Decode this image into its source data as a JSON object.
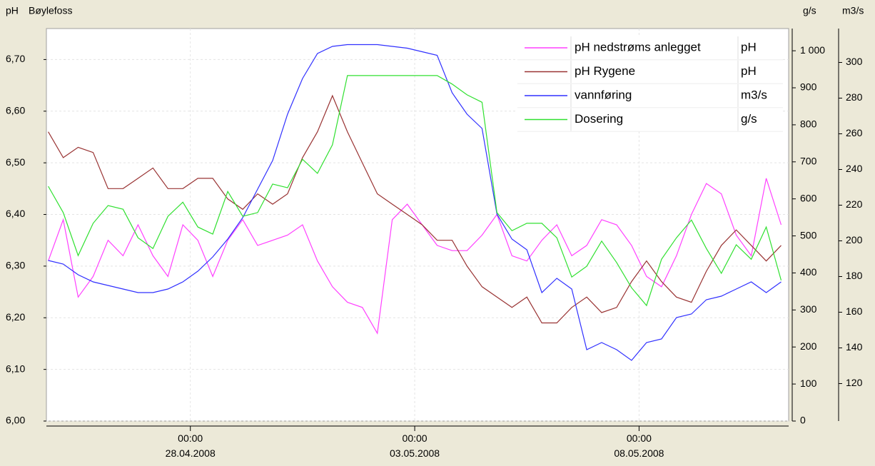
{
  "chart_data": {
    "type": "line",
    "title": "Bøylefoss",
    "ylabel": "pH",
    "y2label": "g/s",
    "y3label": "m3/s",
    "xlim": [
      "2008-04-24T19:00",
      "2008-05-11T08:00"
    ],
    "xticks": [
      {
        "value": "2008-04-28T00:00",
        "label": "00:00\n28.04.2008"
      },
      {
        "value": "2008-05-03T00:00",
        "label": "00:00\n03.05.2008"
      },
      {
        "value": "2008-05-08T00:00",
        "label": "00:00\n08.05.2008"
      }
    ],
    "ylim": [
      6.0,
      6.76
    ],
    "yticks": [
      {
        "value": 6.0,
        "label": "6,00"
      },
      {
        "value": 6.1,
        "label": "6,10"
      },
      {
        "value": 6.2,
        "label": "6,20"
      },
      {
        "value": 6.3,
        "label": "6,30"
      },
      {
        "value": 6.4,
        "label": "6,40"
      },
      {
        "value": 6.5,
        "label": "6,50"
      },
      {
        "value": 6.6,
        "label": "6,60"
      },
      {
        "value": 6.7,
        "label": "6,70"
      }
    ],
    "y2lim": [
      0,
      1060
    ],
    "y2ticks": [
      0,
      100,
      200,
      300,
      400,
      500,
      600,
      700,
      800,
      900,
      {
        "value": 1000,
        "label": "1 000"
      }
    ],
    "y3lim": [
      99,
      319
    ],
    "y3ticks": [
      120,
      140,
      160,
      180,
      200,
      220,
      240,
      260,
      280,
      300
    ],
    "grid": true,
    "legend": "upper right",
    "x": [
      "2008-04-24T20:00",
      "2008-04-25T04:00",
      "2008-04-25T12:00",
      "2008-04-25T20:00",
      "2008-04-26T04:00",
      "2008-04-26T12:00",
      "2008-04-26T20:00",
      "2008-04-27T04:00",
      "2008-04-27T12:00",
      "2008-04-27T20:00",
      "2008-04-28T04:00",
      "2008-04-28T12:00",
      "2008-04-28T20:00",
      "2008-04-29T04:00",
      "2008-04-29T12:00",
      "2008-04-29T20:00",
      "2008-04-30T04:00",
      "2008-04-30T12:00",
      "2008-04-30T20:00",
      "2008-05-01T04:00",
      "2008-05-01T12:00",
      "2008-05-01T20:00",
      "2008-05-02T04:00",
      "2008-05-02T12:00",
      "2008-05-02T20:00",
      "2008-05-03T04:00",
      "2008-05-03T12:00",
      "2008-05-03T20:00",
      "2008-05-04T04:00",
      "2008-05-04T12:00",
      "2008-05-04T20:00",
      "2008-05-05T04:00",
      "2008-05-05T12:00",
      "2008-05-05T20:00",
      "2008-05-06T04:00",
      "2008-05-06T12:00",
      "2008-05-06T20:00",
      "2008-05-07T04:00",
      "2008-05-07T12:00",
      "2008-05-07T20:00",
      "2008-05-08T04:00",
      "2008-05-08T12:00",
      "2008-05-08T20:00",
      "2008-05-09T04:00",
      "2008-05-09T12:00",
      "2008-05-09T20:00",
      "2008-05-10T04:00",
      "2008-05-10T12:00",
      "2008-05-10T20:00",
      "2008-05-11T04:00"
    ],
    "series": [
      {
        "name": "pH nedstrøms anlegget",
        "unit": "pH",
        "color": "#ff40ff",
        "axis": "y",
        "values": [
          6.31,
          6.39,
          6.24,
          6.28,
          6.35,
          6.32,
          6.38,
          6.32,
          6.28,
          6.38,
          6.35,
          6.28,
          6.35,
          6.39,
          6.34,
          6.35,
          6.36,
          6.38,
          6.31,
          6.26,
          6.23,
          6.22,
          6.17,
          6.39,
          6.42,
          6.38,
          6.34,
          6.33,
          6.33,
          6.36,
          6.4,
          6.32,
          6.31,
          6.35,
          6.38,
          6.32,
          6.34,
          6.39,
          6.38,
          6.34,
          6.28,
          6.26,
          6.32,
          6.4,
          6.46,
          6.44,
          6.36,
          6.32,
          6.47,
          6.38
        ]
      },
      {
        "name": "pH Rygene",
        "unit": "pH",
        "color": "#993333",
        "axis": "y",
        "values": [
          6.56,
          6.51,
          6.53,
          6.52,
          6.45,
          6.45,
          6.47,
          6.49,
          6.45,
          6.45,
          6.47,
          6.47,
          6.43,
          6.41,
          6.44,
          6.42,
          6.44,
          6.51,
          6.56,
          6.63,
          6.56,
          6.5,
          6.44,
          6.42,
          6.4,
          6.38,
          6.35,
          6.35,
          6.3,
          6.26,
          6.24,
          6.22,
          6.24,
          6.19,
          6.19,
          6.22,
          6.24,
          6.21,
          6.22,
          6.27,
          6.31,
          6.27,
          6.24,
          6.23,
          6.29,
          6.34,
          6.37,
          6.34,
          6.31,
          6.34
        ]
      },
      {
        "name": "vannføring",
        "unit": "m3/s",
        "color": "#3030ff",
        "axis": "y3",
        "values": [
          189,
          187,
          181,
          177,
          175,
          173,
          171,
          171,
          173,
          177,
          183,
          191,
          201,
          213,
          229,
          245,
          271,
          291,
          305,
          309,
          310,
          310,
          310,
          309,
          308,
          306,
          304,
          283,
          271,
          263,
          215,
          201,
          195,
          171,
          179,
          173,
          139,
          143,
          139,
          133,
          143,
          145,
          157,
          159,
          167,
          169,
          173,
          177,
          171,
          177
        ]
      },
      {
        "name": "Dosering",
        "unit": "g/s",
        "color": "#30e030",
        "axis": "y2",
        "values": [
          634,
          563,
          447,
          534,
          582,
          572,
          495,
          466,
          553,
          591,
          524,
          505,
          620,
          553,
          563,
          640,
          630,
          707,
          669,
          746,
          933,
          933,
          933,
          933,
          933,
          933,
          933,
          910,
          881,
          861,
          563,
          514,
          534,
          534,
          495,
          389,
          418,
          486,
          428,
          360,
          312,
          437,
          495,
          543,
          466,
          399,
          476,
          437,
          524,
          380
        ]
      }
    ]
  }
}
